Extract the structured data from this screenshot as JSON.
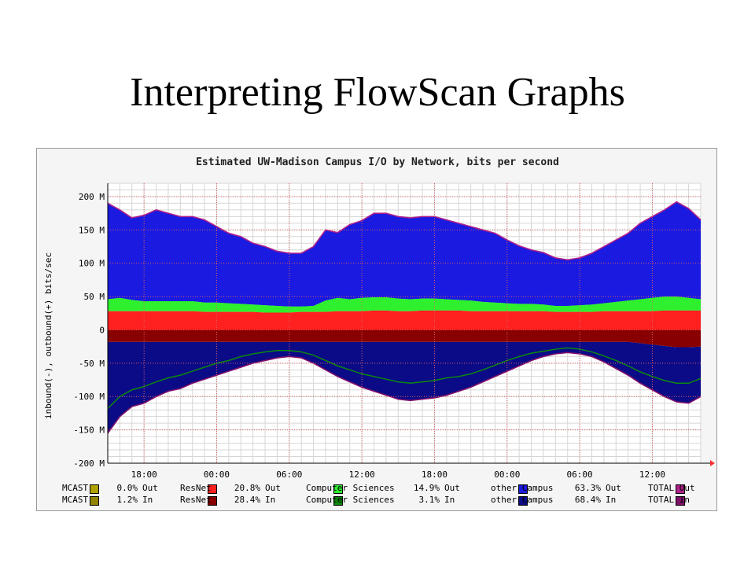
{
  "slide": {
    "title": "Interpreting FlowScan Graphs"
  },
  "chart_data": {
    "type": "area",
    "title": "Estimated UW-Madison Campus I/O by Network, bits per second",
    "ylabel": "inbound(-), outbound(+) bits/sec",
    "xlabel": "",
    "ylim": [
      -200,
      220
    ],
    "yticks": [
      "200 M",
      "150 M",
      "100 M",
      "50 M",
      "0",
      "-50 M",
      "-100 M",
      "-150 M",
      "-200 M"
    ],
    "ytick_values": [
      200,
      150,
      100,
      50,
      0,
      -50,
      -100,
      -150,
      -200
    ],
    "xticks": [
      "18:00",
      "00:00",
      "06:00",
      "12:00",
      "18:00",
      "00:00",
      "06:00",
      "12:00"
    ],
    "xtick_hours": [
      3,
      9,
      15,
      21,
      27,
      33,
      39,
      45
    ],
    "x_hours": [
      0,
      1,
      2,
      3,
      4,
      5,
      6,
      7,
      8,
      9,
      10,
      11,
      12,
      13,
      14,
      15,
      16,
      17,
      18,
      19,
      20,
      21,
      22,
      23,
      24,
      25,
      26,
      27,
      28,
      29,
      30,
      31,
      32,
      33,
      34,
      35,
      36,
      37,
      38,
      39,
      40,
      41,
      42,
      43,
      44,
      45,
      46,
      47,
      48,
      49
    ],
    "grid": true,
    "background": "#ffffff",
    "grid_minor_color": "#d6d6d6",
    "grid_major_color": "#e06060",
    "series": [
      {
        "name": "ResNet",
        "direction": "Out",
        "color": "#ff2020",
        "values": [
          28,
          28,
          28,
          28,
          28,
          28,
          28,
          28,
          27,
          27,
          27,
          27,
          27,
          26,
          26,
          26,
          27,
          27,
          27,
          28,
          28,
          28,
          29,
          29,
          28,
          28,
          29,
          29,
          29,
          29,
          28,
          28,
          28,
          28,
          28,
          28,
          28,
          27,
          27,
          27,
          27,
          28,
          28,
          28,
          28,
          28,
          29,
          29,
          29,
          29
        ]
      },
      {
        "name": "Computer Sciences",
        "direction": "Out",
        "color": "#2ef02e",
        "values": [
          18,
          20,
          17,
          15,
          15,
          15,
          15,
          15,
          14,
          14,
          13,
          12,
          11,
          11,
          10,
          9,
          8,
          9,
          17,
          20,
          18,
          20,
          20,
          20,
          19,
          18,
          18,
          18,
          17,
          16,
          16,
          14,
          13,
          12,
          11,
          11,
          10,
          9,
          9,
          10,
          11,
          12,
          14,
          16,
          18,
          20,
          21,
          21,
          19,
          17
        ]
      },
      {
        "name": "other Campus",
        "direction": "Out",
        "color": "#1a1ae0",
        "values": [
          95,
          80,
          75,
          85,
          90,
          75,
          72,
          80,
          80,
          72,
          70,
          65,
          60,
          58,
          55,
          54,
          55,
          60,
          70,
          68,
          75,
          78,
          82,
          82,
          80,
          84,
          84,
          83,
          80,
          80,
          80,
          79,
          78,
          72,
          65,
          60,
          57,
          54,
          54,
          55,
          59,
          65,
          70,
          72,
          80,
          85,
          90,
          95,
          90,
          80
        ]
      },
      {
        "name": "ResNet",
        "direction": "In",
        "color": "#880000",
        "values": [
          -18,
          -18,
          -18,
          -18,
          -18,
          -18,
          -18,
          -18,
          -18,
          -18,
          -18,
          -18,
          -18,
          -18,
          -18,
          -18,
          -18,
          -18,
          -18,
          -18,
          -18,
          -18,
          -18,
          -18,
          -18,
          -18,
          -18,
          -18,
          -18,
          -18,
          -18,
          -18,
          -18,
          -18,
          -18,
          -18,
          -18,
          -18,
          -18,
          -18,
          -18,
          -18,
          -18,
          -18,
          -20,
          -22,
          -24,
          -26,
          -26,
          -25
        ]
      },
      {
        "name": "other Campus",
        "direction": "In",
        "color": "#0b0b88",
        "values": [
          -130,
          -112,
          -95,
          -90,
          -82,
          -75,
          -70,
          -64,
          -58,
          -52,
          -47,
          -42,
          -37,
          -34,
          -32,
          -32,
          -34,
          -40,
          -48,
          -56,
          -62,
          -68,
          -72,
          -76,
          -80,
          -82,
          -80,
          -78,
          -75,
          -72,
          -68,
          -62,
          -55,
          -48,
          -42,
          -36,
          -33,
          -30,
          -28,
          -30,
          -34,
          -40,
          -48,
          -56,
          -65,
          -72,
          -78,
          -82,
          -82,
          -75
        ]
      }
    ],
    "total_out": [
      190,
      180,
      168,
      172,
      180,
      175,
      170,
      170,
      165,
      155,
      145,
      140,
      130,
      125,
      118,
      115,
      115,
      125,
      150,
      146,
      158,
      164,
      175,
      175,
      170,
      168,
      170,
      170,
      165,
      160,
      155,
      150,
      145,
      135,
      126,
      120,
      116,
      108,
      105,
      108,
      115,
      125,
      135,
      145,
      160,
      170,
      180,
      192,
      182,
      165
    ],
    "total_in": [
      -155,
      -130,
      -115,
      -110,
      -100,
      -92,
      -88,
      -80,
      -74,
      -68,
      -62,
      -56,
      -50,
      -46,
      -42,
      -40,
      -42,
      -50,
      -60,
      -70,
      -78,
      -86,
      -92,
      -98,
      -104,
      -106,
      -104,
      -102,
      -98,
      -92,
      -86,
      -78,
      -70,
      -62,
      -54,
      -46,
      -40,
      -36,
      -34,
      -36,
      -40,
      -48,
      -58,
      -68,
      -80,
      -90,
      -100,
      -108,
      -110,
      -100
    ],
    "cs_in": [
      -118,
      -100,
      -90,
      -85,
      -78,
      -72,
      -68,
      -62,
      -56,
      -50,
      -46,
      -40,
      -36,
      -33,
      -31,
      -31,
      -33,
      -38,
      -46,
      -54,
      -60,
      -66,
      -70,
      -74,
      -78,
      -80,
      -78,
      -76,
      -72,
      -70,
      -66,
      -60,
      -53,
      -46,
      -40,
      -35,
      -32,
      -29,
      -27,
      -29,
      -33,
      -39,
      -46,
      -54,
      -63,
      -70,
      -76,
      -80,
      -80,
      -73
    ]
  },
  "legend": {
    "rows": [
      [
        {
          "name": "MCAST",
          "pct": "0.0%",
          "dir": "Out",
          "color": "#b0a000"
        },
        {
          "name": "ResNet",
          "pct": "20.8%",
          "dir": "Out",
          "color": "#ff2020"
        },
        {
          "name": "Computer Sciences",
          "pct": "14.9%",
          "dir": "Out",
          "color": "#2ef02e"
        },
        {
          "name": "other Campus",
          "pct": "63.3%",
          "dir": "Out",
          "color": "#1a1ae0"
        },
        {
          "name": "TOTAL Out",
          "pct": "",
          "dir": "",
          "color": "#b0208a"
        }
      ],
      [
        {
          "name": "MCAST",
          "pct": "1.2%",
          "dir": "In",
          "color": "#908400"
        },
        {
          "name": "ResNet",
          "pct": "28.4%",
          "dir": "In",
          "color": "#880000"
        },
        {
          "name": "Computer Sciences",
          "pct": "3.1%",
          "dir": "In",
          "color": "#0a8a0a"
        },
        {
          "name": "other Campus",
          "pct": "68.4%",
          "dir": "In",
          "color": "#0b0b88"
        },
        {
          "name": "TOTAL In",
          "pct": "",
          "dir": "",
          "color": "#80106a"
        }
      ]
    ]
  }
}
